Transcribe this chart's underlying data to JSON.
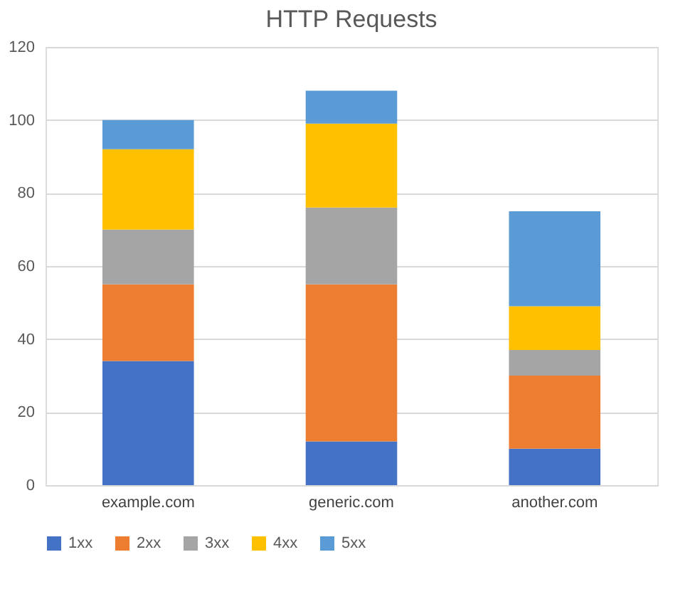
{
  "chart_data": {
    "type": "bar",
    "title": "HTTP Requests",
    "stacked": true,
    "categories": [
      "example.com",
      "generic.com",
      "another.com"
    ],
    "series": [
      {
        "name": "1xx",
        "color": "#4472c4",
        "values": [
          34,
          12,
          10
        ]
      },
      {
        "name": "2xx",
        "color": "#ed7d31",
        "values": [
          21,
          43,
          20
        ]
      },
      {
        "name": "3xx",
        "color": "#a5a5a5",
        "values": [
          15,
          21,
          7
        ]
      },
      {
        "name": "4xx",
        "color": "#ffc000",
        "values": [
          22,
          23,
          12
        ]
      },
      {
        "name": "5xx",
        "color": "#5b9bd5",
        "values": [
          8,
          9,
          26
        ]
      }
    ],
    "ylim": [
      0,
      120
    ],
    "yticks": [
      0,
      20,
      40,
      60,
      80,
      100,
      120
    ],
    "grid": "y",
    "legend": "bottom"
  }
}
